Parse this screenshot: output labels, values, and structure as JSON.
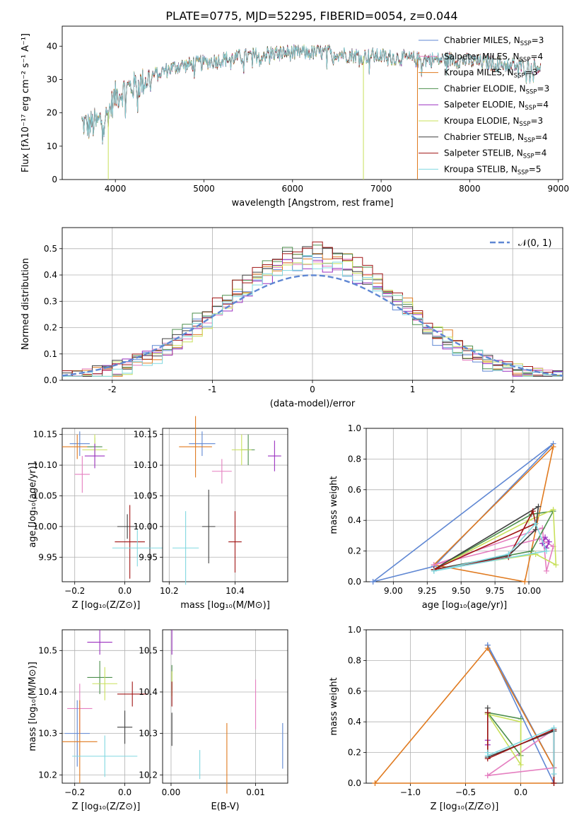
{
  "figure": {
    "title": "PLATE=0775, MJD=52295, FIBERID=0054, z=0.044"
  },
  "colors": {
    "chabrier_miles": "#5f87d3",
    "salpeter_miles": "#e57fc0",
    "kroupa_miles": "#e07a1f",
    "chabrier_elodie": "#4d8f4d",
    "salpeter_elodie": "#9b30c0",
    "kroupa_elodie": "#c8e05a",
    "chabrier_stelib": "#404040",
    "salpeter_stelib": "#a01515",
    "kroupa_stelib": "#80d8e0",
    "data": "#6e6e6e",
    "normal": "#5f87d3"
  },
  "legend_spectrum": [
    {
      "key": "chabrier_miles",
      "label": "Chabrier MILES, N",
      "sub": "SSP",
      "val": "=3"
    },
    {
      "key": "salpeter_miles",
      "label": "Salpeter MILES, N",
      "sub": "SSP",
      "val": "=4"
    },
    {
      "key": "kroupa_miles",
      "label": "Kroupa MILES, N",
      "sub": "SSP",
      "val": "=3"
    },
    {
      "key": "chabrier_elodie",
      "label": "Chabrier ELODIE, N",
      "sub": "SSP",
      "val": "=3"
    },
    {
      "key": "salpeter_elodie",
      "label": "Salpeter ELODIE, N",
      "sub": "SSP",
      "val": "=4"
    },
    {
      "key": "kroupa_elodie",
      "label": "Kroupa ELODIE, N",
      "sub": "SSP",
      "val": "=3"
    },
    {
      "key": "chabrier_stelib",
      "label": "Chabrier STELIB, N",
      "sub": "SSP",
      "val": "=4"
    },
    {
      "key": "salpeter_stelib",
      "label": "Salpeter STELIB, N",
      "sub": "SSP",
      "val": "=4"
    },
    {
      "key": "kroupa_stelib",
      "label": "Kroupa STELIB, N",
      "sub": "SSP",
      "val": "=5"
    }
  ],
  "chart_data": [
    {
      "id": "spectrum",
      "type": "line",
      "xlabel": "wavelength [Angstrom, rest frame]",
      "ylabel": "Flux [fλ10⁻¹⁷ erg cm⁻² s⁻¹ A⁻¹]",
      "xlim": [
        3400,
        9050
      ],
      "ylim": [
        0,
        46
      ],
      "xticks": [
        4000,
        5000,
        6000,
        7000,
        8000,
        9000
      ],
      "yticks": [
        0,
        10,
        20,
        30,
        40
      ],
      "legend": "top-right",
      "continuum": {
        "x": [
          3620,
          3700,
          3800,
          3900,
          3950,
          4000,
          4100,
          4200,
          4300,
          4400,
          4500,
          4700,
          5000,
          5200,
          5500,
          5800,
          6000,
          6200,
          6400,
          6600,
          6800,
          7000,
          7200,
          7400,
          7600,
          7800,
          8000,
          8200,
          8400,
          8600,
          8800
        ],
        "y": [
          17,
          16,
          17,
          19,
          22,
          25,
          27,
          28,
          29,
          31,
          32,
          34,
          35,
          36,
          37,
          38,
          38,
          38,
          38,
          37.5,
          37,
          37,
          36.5,
          36,
          36,
          36,
          35.5,
          35,
          34.5,
          34,
          34
        ]
      },
      "drops": [
        {
          "x": 3920,
          "ymin": 0,
          "series": "kroupa_elodie"
        },
        {
          "x": 6800,
          "ymin": 0,
          "series": "kroupa_elodie"
        },
        {
          "x": 7410,
          "ymin": 0,
          "series": "kroupa_miles"
        }
      ]
    },
    {
      "id": "residuals",
      "type": "histogram",
      "xlabel": "(data-model)/error",
      "ylabel": "Normed distribution",
      "xlim": [
        -2.5,
        2.5
      ],
      "ylim": [
        0,
        0.58
      ],
      "xticks": [
        -2,
        -1,
        0,
        1,
        2
      ],
      "yticks": [
        0.0,
        0.1,
        0.2,
        0.3,
        0.4,
        0.5
      ],
      "grid": true,
      "legend": "top-right",
      "normal_label": "𝒩(0, 1)",
      "bin_width": 0.1
    },
    {
      "id": "age_vs_Z",
      "type": "scatter",
      "xlabel": "Z [log₁₀(Z/Z⊙)]",
      "ylabel": "age  [log₁₀(age/yr)]",
      "xlim": [
        -0.25,
        0.1
      ],
      "ylim": [
        9.91,
        10.16
      ],
      "xticks": [
        -0.2,
        0.0
      ],
      "xticklabels": [
        "−0.2",
        "0.0"
      ],
      "yticks": [
        9.95,
        10.0,
        10.05,
        10.1,
        10.15
      ],
      "points": [
        {
          "s": "chabrier_miles",
          "x": -0.18,
          "y": 10.135,
          "xe": 0.04,
          "ye": 0.02
        },
        {
          "s": "kroupa_miles",
          "x": -0.19,
          "y": 10.13,
          "xe": 0.06,
          "ye": 0.02
        },
        {
          "s": "chabrier_elodie",
          "x": -0.12,
          "y": 10.13,
          "xe": 0.03,
          "ye": 0.015
        },
        {
          "s": "kroupa_elodie",
          "x": -0.12,
          "y": 10.125,
          "xe": 0.05,
          "ye": 0.025
        },
        {
          "s": "salpeter_elodie",
          "x": -0.12,
          "y": 10.115,
          "xe": 0.04,
          "ye": 0.02
        },
        {
          "s": "salpeter_miles",
          "x": -0.17,
          "y": 10.085,
          "xe": 0.03,
          "ye": 0.03
        },
        {
          "s": "chabrier_stelib",
          "x": 0.01,
          "y": 10.0,
          "xe": 0.04,
          "ye": 0.02
        },
        {
          "s": "salpeter_stelib",
          "x": 0.02,
          "y": 9.975,
          "xe": 0.06,
          "ye": 0.06
        },
        {
          "s": "kroupa_stelib",
          "x": 0.05,
          "y": 9.965,
          "xe": 0.1,
          "ye": 0.03
        }
      ]
    },
    {
      "id": "age_vs_mass",
      "type": "scatter",
      "xlabel": "mass [log₁₀(M/M⊙)]",
      "ylabel": "",
      "xlim": [
        10.18,
        10.56
      ],
      "ylim": [
        9.91,
        10.16
      ],
      "xticks": [
        10.2,
        10.4
      ],
      "xticklabels": [
        "10.2",
        "10.4"
      ],
      "yticks": [
        9.95,
        10.0,
        10.05,
        10.1,
        10.15
      ],
      "points": [
        {
          "s": "chabrier_miles",
          "x": 10.3,
          "y": 10.135,
          "xe": 0.04,
          "ye": 0.02
        },
        {
          "s": "kroupa_miles",
          "x": 10.28,
          "y": 10.13,
          "xe": 0.05,
          "ye": 0.05
        },
        {
          "s": "chabrier_elodie",
          "x": 10.44,
          "y": 10.125,
          "xe": 0.02,
          "ye": 0.025
        },
        {
          "s": "kroupa_elodie",
          "x": 10.42,
          "y": 10.125,
          "xe": 0.03,
          "ye": 0.025
        },
        {
          "s": "salpeter_elodie",
          "x": 10.52,
          "y": 10.115,
          "xe": 0.02,
          "ye": 0.025
        },
        {
          "s": "salpeter_miles",
          "x": 10.36,
          "y": 10.09,
          "xe": 0.03,
          "ye": 0.02
        },
        {
          "s": "chabrier_stelib",
          "x": 10.32,
          "y": 10.0,
          "xe": 0.02,
          "ye": 0.06
        },
        {
          "s": "salpeter_stelib",
          "x": 10.4,
          "y": 9.975,
          "xe": 0.02,
          "ye": 0.05
        },
        {
          "s": "kroupa_stelib",
          "x": 10.25,
          "y": 9.965,
          "xe": 0.04,
          "ye": 0.06
        }
      ]
    },
    {
      "id": "mass_vs_Z",
      "type": "scatter",
      "xlabel": "Z [log₁₀(Z/Z⊙)]",
      "ylabel": "mass [log₁₀(M/M⊙)]",
      "xlim": [
        -0.25,
        0.1
      ],
      "ylim": [
        10.18,
        10.55
      ],
      "xticks": [
        -0.2,
        0.0
      ],
      "xticklabels": [
        "−0.2",
        "0.0"
      ],
      "yticks": [
        10.2,
        10.3,
        10.4,
        10.5
      ],
      "points": [
        {
          "s": "salpeter_elodie",
          "x": -0.1,
          "y": 10.52,
          "xe": 0.05,
          "ye": 0.03
        },
        {
          "s": "chabrier_elodie",
          "x": -0.1,
          "y": 10.435,
          "xe": 0.05,
          "ye": 0.04
        },
        {
          "s": "kroupa_elodie",
          "x": -0.08,
          "y": 10.42,
          "xe": 0.05,
          "ye": 0.04
        },
        {
          "s": "salpeter_stelib",
          "x": 0.03,
          "y": 10.395,
          "xe": 0.06,
          "ye": 0.03
        },
        {
          "s": "salpeter_miles",
          "x": -0.18,
          "y": 10.36,
          "xe": 0.05,
          "ye": 0.06
        },
        {
          "s": "chabrier_stelib",
          "x": 0.0,
          "y": 10.315,
          "xe": 0.03,
          "ye": 0.04
        },
        {
          "s": "chabrier_miles",
          "x": -0.19,
          "y": 10.3,
          "xe": 0.05,
          "ye": 0.08
        },
        {
          "s": "kroupa_miles",
          "x": -0.18,
          "y": 10.28,
          "xe": 0.07,
          "ye": 0.1
        },
        {
          "s": "kroupa_stelib",
          "x": -0.08,
          "y": 10.245,
          "xe": 0.13,
          "ye": 0.05
        }
      ]
    },
    {
      "id": "mass_vs_ebv",
      "type": "scatter",
      "xlabel": "E(B-V)",
      "ylabel": "",
      "xlim": [
        -0.001,
        0.0138
      ],
      "ylim": [
        10.18,
        10.55
      ],
      "xticks": [
        0.0,
        0.01
      ],
      "xticklabels": [
        "0.00",
        "0.01"
      ],
      "yticks": [
        10.2,
        10.3,
        10.4,
        10.5
      ],
      "points": [
        {
          "s": "salpeter_elodie",
          "x": 0.0001,
          "y": 10.52,
          "xe": 0,
          "ye": 0.03
        },
        {
          "s": "chabrier_elodie",
          "x": 0.0001,
          "y": 10.435,
          "xe": 0,
          "ye": 0.03
        },
        {
          "s": "kroupa_elodie",
          "x": 0.0001,
          "y": 10.42,
          "xe": 0,
          "ye": 0.03
        },
        {
          "s": "salpeter_stelib",
          "x": 0.0001,
          "y": 10.395,
          "xe": 0,
          "ye": 0.03
        },
        {
          "s": "salpeter_miles",
          "x": 0.01,
          "y": 10.37,
          "xe": 0,
          "ye": 0.06
        },
        {
          "s": "chabrier_stelib",
          "x": 0.0001,
          "y": 10.31,
          "xe": 0,
          "ye": 0.04
        },
        {
          "s": "chabrier_miles",
          "x": 0.0132,
          "y": 10.27,
          "xe": 0,
          "ye": 0.055
        },
        {
          "s": "kroupa_miles",
          "x": 0.0066,
          "y": 10.24,
          "xe": 0,
          "ye": 0.085
        },
        {
          "s": "kroupa_stelib",
          "x": 0.0034,
          "y": 10.225,
          "xe": 0,
          "ye": 0.035
        }
      ]
    },
    {
      "id": "weight_vs_age",
      "type": "line",
      "xlabel": "age  [log₁₀(age/yr)]",
      "ylabel": "mass weight",
      "xlim": [
        8.8,
        10.25
      ],
      "ylim": [
        0,
        1
      ],
      "xticks": [
        9.0,
        9.5,
        10.0
      ],
      "xticklabels": [
        "9.00",
        "9.25",
        "9.50",
        "9.75",
        "10.00"
      ],
      "xtickvals": [
        9.0,
        9.25,
        9.5,
        9.75,
        10.0
      ],
      "yticks": [
        0.0,
        0.2,
        0.4,
        0.6,
        0.8,
        1.0
      ],
      "grid": true,
      "series": [
        {
          "s": "chabrier_miles",
          "x": [
            8.85,
            10.18,
            9.3,
            8.85
          ],
          "y": [
            0.0,
            0.9,
            0.1,
            0.0
          ]
        },
        {
          "s": "kroupa_miles",
          "x": [
            9.3,
            10.18,
            9.97,
            9.3
          ],
          "y": [
            0.11,
            0.88,
            0.0,
            0.11
          ]
        },
        {
          "s": "salpeter_miles",
          "x": [
            9.3,
            10.1,
            10.13,
            10.18,
            10.08,
            9.3
          ],
          "y": [
            0.11,
            0.35,
            0.07,
            0.23,
            0.28,
            0.11
          ]
        },
        {
          "s": "chabrier_elodie",
          "x": [
            9.3,
            10.02,
            10.18,
            10.02,
            9.3
          ],
          "y": [
            0.08,
            0.44,
            0.46,
            0.2,
            0.08
          ]
        },
        {
          "s": "kroupa_elodie",
          "x": [
            9.3,
            10.0,
            10.18,
            10.2,
            10.05,
            9.3
          ],
          "y": [
            0.08,
            0.4,
            0.47,
            0.11,
            0.18,
            0.08
          ]
        },
        {
          "s": "salpeter_elodie",
          "x": [
            10.1,
            10.12,
            10.15,
            10.13,
            10.1
          ],
          "y": [
            0.25,
            0.29,
            0.26,
            0.22,
            0.25
          ]
        },
        {
          "s": "chabrier_stelib",
          "x": [
            9.3,
            9.85,
            10.05,
            10.07,
            9.3
          ],
          "y": [
            0.08,
            0.17,
            0.34,
            0.49,
            0.08
          ]
        },
        {
          "s": "salpeter_stelib",
          "x": [
            9.3,
            9.85,
            10.03,
            10.05,
            9.3
          ],
          "y": [
            0.08,
            0.16,
            0.46,
            0.38,
            0.08
          ]
        },
        {
          "s": "kroupa_stelib",
          "x": [
            9.3,
            9.85,
            10.05,
            10.13,
            9.3
          ],
          "y": [
            0.07,
            0.18,
            0.38,
            0.2,
            0.07
          ]
        }
      ]
    },
    {
      "id": "weight_vs_Z",
      "type": "line",
      "xlabel": "Z [log₁₀(Z/Z⊙)]",
      "ylabel": "mass weight",
      "xlim": [
        -1.4,
        0.38
      ],
      "ylim": [
        0,
        1
      ],
      "xtickvals": [
        -1.0,
        -0.5,
        0.0
      ],
      "xticklabels": [
        "−1.0",
        "−0.5",
        "0.0"
      ],
      "yticks": [
        0.0,
        0.2,
        0.4,
        0.6,
        0.8,
        1.0
      ],
      "grid": true,
      "series": [
        {
          "s": "chabrier_miles",
          "x": [
            -0.3,
            0.3,
            0.3,
            -0.3
          ],
          "y": [
            0.9,
            0.1,
            0.0,
            0.9
          ]
        },
        {
          "s": "kroupa_miles",
          "x": [
            -1.32,
            -0.3,
            0.3,
            0.3,
            -1.32
          ],
          "y": [
            0.0,
            0.88,
            0.1,
            0.0,
            0.0
          ]
        },
        {
          "s": "salpeter_miles",
          "x": [
            -0.3,
            0.3,
            0.3,
            -0.3
          ],
          "y": [
            0.05,
            0.1,
            0.35,
            0.05
          ]
        },
        {
          "s": "chabrier_elodie",
          "x": [
            -0.3,
            0.0,
            0.0,
            -0.3
          ],
          "y": [
            0.46,
            0.42,
            0.18,
            0.46
          ]
        },
        {
          "s": "kroupa_elodie",
          "x": [
            -0.3,
            0.0,
            0.0,
            -0.3
          ],
          "y": [
            0.45,
            0.4,
            0.12,
            0.45
          ]
        },
        {
          "s": "salpeter_elodie",
          "x": [
            -0.3,
            -0.3
          ],
          "y": [
            0.25,
            0.28
          ]
        },
        {
          "s": "chabrier_stelib",
          "x": [
            -0.3,
            -0.3,
            0.3,
            0.3
          ],
          "y": [
            0.49,
            0.17,
            0.34,
            0.0
          ]
        },
        {
          "s": "salpeter_stelib",
          "x": [
            -0.3,
            -0.3,
            0.3,
            0.3
          ],
          "y": [
            0.46,
            0.16,
            0.35,
            0.0
          ]
        },
        {
          "s": "kroupa_stelib",
          "x": [
            -0.3,
            -0.3,
            0.3,
            0.3
          ],
          "y": [
            0.2,
            0.18,
            0.36,
            0.06
          ]
        }
      ]
    }
  ]
}
